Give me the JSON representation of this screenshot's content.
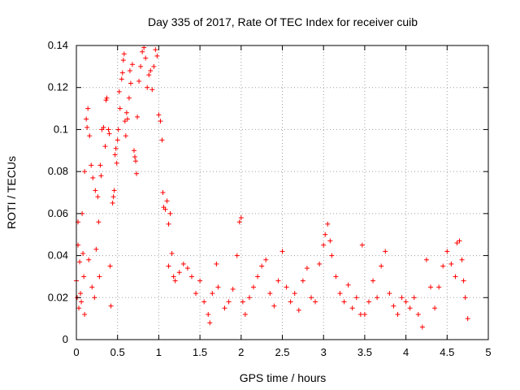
{
  "chart_data": {
    "type": "scatter",
    "title": "Day 335 of 2017, Rate Of TEC Index for receiver cuib",
    "xlabel": "GPS time / hours",
    "ylabel": "ROTI / TECUs",
    "xlim": [
      0,
      5
    ],
    "ylim": [
      0,
      0.14
    ],
    "xticks": [
      0,
      0.5,
      1,
      1.5,
      2,
      2.5,
      3,
      3.5,
      4,
      4.5,
      5
    ],
    "xtick_labels": [
      "0",
      "0.5",
      "1",
      "1.5",
      "2",
      "2.5",
      "3",
      "3.5",
      "4",
      "4.5",
      "5"
    ],
    "yticks": [
      0,
      0.02,
      0.04,
      0.06,
      0.08,
      0.1,
      0.12,
      0.14
    ],
    "ytick_labels": [
      "0",
      "0.02",
      "0.04",
      "0.06",
      "0.08",
      "0.1",
      "0.12",
      "0.14"
    ],
    "grid": true,
    "marker_color": "#ff0000",
    "series": [
      {
        "name": "ROTI",
        "points": [
          [
            0.0,
            0.028
          ],
          [
            0.01,
            0.02
          ],
          [
            0.02,
            0.045
          ],
          [
            0.02,
            0.056
          ],
          [
            0.03,
            0.015
          ],
          [
            0.04,
            0.037
          ],
          [
            0.05,
            0.022
          ],
          [
            0.06,
            0.018
          ],
          [
            0.07,
            0.06
          ],
          [
            0.08,
            0.041
          ],
          [
            0.09,
            0.03
          ],
          [
            0.1,
            0.012
          ],
          [
            0.1,
            0.08
          ],
          [
            0.12,
            0.105
          ],
          [
            0.13,
            0.101
          ],
          [
            0.14,
            0.11
          ],
          [
            0.15,
            0.038
          ],
          [
            0.16,
            0.097
          ],
          [
            0.18,
            0.083
          ],
          [
            0.19,
            0.025
          ],
          [
            0.2,
            0.077
          ],
          [
            0.22,
            0.02
          ],
          [
            0.23,
            0.071
          ],
          [
            0.24,
            0.043
          ],
          [
            0.26,
            0.068
          ],
          [
            0.27,
            0.056
          ],
          [
            0.28,
            0.03
          ],
          [
            0.29,
            0.083
          ],
          [
            0.3,
            0.078
          ],
          [
            0.31,
            0.1
          ],
          [
            0.33,
            0.101
          ],
          [
            0.35,
            0.092
          ],
          [
            0.36,
            0.114
          ],
          [
            0.37,
            0.115
          ],
          [
            0.39,
            0.1
          ],
          [
            0.4,
            0.098
          ],
          [
            0.41,
            0.035
          ],
          [
            0.42,
            0.016
          ],
          [
            0.44,
            0.065
          ],
          [
            0.45,
            0.068
          ],
          [
            0.46,
            0.071
          ],
          [
            0.47,
            0.088
          ],
          [
            0.48,
            0.091
          ],
          [
            0.49,
            0.084
          ],
          [
            0.5,
            0.095
          ],
          [
            0.51,
            0.1
          ],
          [
            0.52,
            0.118
          ],
          [
            0.53,
            0.11
          ],
          [
            0.55,
            0.124
          ],
          [
            0.56,
            0.127
          ],
          [
            0.57,
            0.133
          ],
          [
            0.58,
            0.136
          ],
          [
            0.59,
            0.104
          ],
          [
            0.6,
            0.097
          ],
          [
            0.61,
            0.108
          ],
          [
            0.62,
            0.105
          ],
          [
            0.64,
            0.115
          ],
          [
            0.65,
            0.128
          ],
          [
            0.66,
            0.122
          ],
          [
            0.68,
            0.131
          ],
          [
            0.7,
            0.09
          ],
          [
            0.71,
            0.087
          ],
          [
            0.72,
            0.085
          ],
          [
            0.73,
            0.079
          ],
          [
            0.74,
            0.106
          ],
          [
            0.76,
            0.123
          ],
          [
            0.78,
            0.13
          ],
          [
            0.8,
            0.137
          ],
          [
            0.82,
            0.139
          ],
          [
            0.84,
            0.134
          ],
          [
            0.86,
            0.12
          ],
          [
            0.88,
            0.126
          ],
          [
            0.9,
            0.128
          ],
          [
            0.92,
            0.119
          ],
          [
            0.94,
            0.13
          ],
          [
            0.96,
            0.138
          ],
          [
            0.98,
            0.135
          ],
          [
            1.0,
            0.107
          ],
          [
            1.02,
            0.104
          ],
          [
            1.04,
            0.095
          ],
          [
            1.05,
            0.07
          ],
          [
            1.06,
            0.063
          ],
          [
            1.08,
            0.062
          ],
          [
            1.1,
            0.066
          ],
          [
            1.12,
            0.055
          ],
          [
            1.14,
            0.06
          ],
          [
            1.16,
            0.041
          ],
          [
            1.12,
            0.035
          ],
          [
            1.18,
            0.03
          ],
          [
            1.2,
            0.028
          ],
          [
            1.25,
            0.032
          ],
          [
            1.3,
            0.036
          ],
          [
            1.35,
            0.034
          ],
          [
            1.4,
            0.03
          ],
          [
            1.45,
            0.022
          ],
          [
            1.5,
            0.028
          ],
          [
            1.55,
            0.018
          ],
          [
            1.6,
            0.012
          ],
          [
            1.62,
            0.008
          ],
          [
            1.65,
            0.022
          ],
          [
            1.7,
            0.036
          ],
          [
            1.72,
            0.025
          ],
          [
            1.8,
            0.015
          ],
          [
            1.85,
            0.018
          ],
          [
            1.9,
            0.024
          ],
          [
            1.95,
            0.04
          ],
          [
            1.98,
            0.056
          ],
          [
            2.0,
            0.058
          ],
          [
            2.02,
            0.018
          ],
          [
            2.05,
            0.012
          ],
          [
            2.1,
            0.02
          ],
          [
            2.15,
            0.025
          ],
          [
            2.2,
            0.03
          ],
          [
            2.25,
            0.035
          ],
          [
            2.3,
            0.038
          ],
          [
            2.35,
            0.022
          ],
          [
            2.4,
            0.016
          ],
          [
            2.45,
            0.028
          ],
          [
            2.5,
            0.042
          ],
          [
            2.55,
            0.025
          ],
          [
            2.6,
            0.018
          ],
          [
            2.65,
            0.022
          ],
          [
            2.7,
            0.014
          ],
          [
            2.75,
            0.028
          ],
          [
            2.8,
            0.034
          ],
          [
            2.85,
            0.02
          ],
          [
            2.9,
            0.018
          ],
          [
            2.95,
            0.036
          ],
          [
            3.0,
            0.045
          ],
          [
            3.02,
            0.05
          ],
          [
            3.05,
            0.055
          ],
          [
            3.08,
            0.047
          ],
          [
            3.1,
            0.04
          ],
          [
            3.15,
            0.03
          ],
          [
            3.2,
            0.022
          ],
          [
            3.25,
            0.018
          ],
          [
            3.3,
            0.026
          ],
          [
            3.35,
            0.015
          ],
          [
            3.4,
            0.02
          ],
          [
            3.45,
            0.012
          ],
          [
            3.47,
            0.045
          ],
          [
            3.5,
            0.012
          ],
          [
            3.55,
            0.018
          ],
          [
            3.6,
            0.028
          ],
          [
            3.65,
            0.02
          ],
          [
            3.7,
            0.035
          ],
          [
            3.75,
            0.042
          ],
          [
            3.8,
            0.022
          ],
          [
            3.85,
            0.016
          ],
          [
            3.9,
            0.012
          ],
          [
            3.95,
            0.02
          ],
          [
            4.0,
            0.018
          ],
          [
            4.05,
            0.015
          ],
          [
            4.1,
            0.02
          ],
          [
            4.15,
            0.012
          ],
          [
            4.2,
            0.006
          ],
          [
            4.25,
            0.038
          ],
          [
            4.3,
            0.025
          ],
          [
            4.35,
            0.015
          ],
          [
            4.4,
            0.025
          ],
          [
            4.45,
            0.035
          ],
          [
            4.5,
            0.042
          ],
          [
            4.55,
            0.036
          ],
          [
            4.6,
            0.03
          ],
          [
            4.62,
            0.046
          ],
          [
            4.65,
            0.047
          ],
          [
            4.68,
            0.038
          ],
          [
            4.7,
            0.028
          ],
          [
            4.72,
            0.02
          ],
          [
            4.75,
            0.01
          ]
        ]
      }
    ]
  }
}
